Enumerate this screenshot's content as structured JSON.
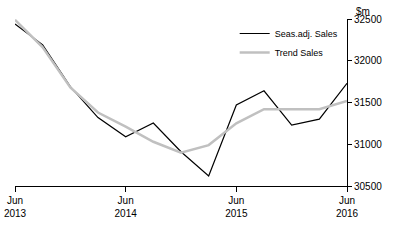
{
  "chart_data": {
    "type": "line",
    "ylabel": "$m",
    "categories": [
      "Jun 2013",
      null,
      null,
      null,
      "Jun 2014",
      null,
      null,
      null,
      "Jun 2015",
      null,
      null,
      null,
      "Jun 2016"
    ],
    "series": [
      {
        "name": "Seas.adj. Sales",
        "color": "#000000",
        "values": [
          32440,
          32190,
          31690,
          31320,
          31090,
          31255,
          30910,
          30620,
          31470,
          31640,
          31230,
          31300,
          31730
        ]
      },
      {
        "name": "Trend Sales",
        "color": "#c0c0c0",
        "values": [
          32490,
          32160,
          31680,
          31380,
          31210,
          31030,
          30900,
          30990,
          31250,
          31420,
          31420,
          31420,
          31520
        ]
      }
    ],
    "ylim": [
      30500,
      32500
    ],
    "yticks": [
      30500,
      31000,
      31500,
      32000,
      32500
    ],
    "grid": false,
    "legend": "upper right"
  }
}
